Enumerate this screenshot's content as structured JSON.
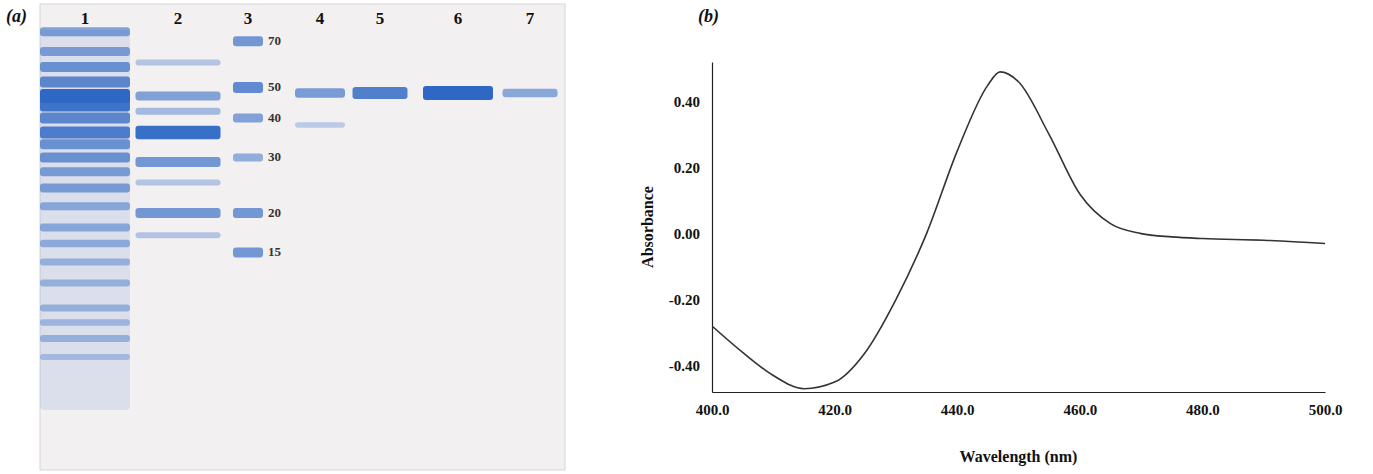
{
  "chart_data": [
    {
      "type": "gel",
      "panel_label": "(a)",
      "log": "y",
      "ylim": [
        76,
        3.3
      ],
      "yticks": [
        70,
        50,
        40,
        30,
        20,
        15
      ],
      "color": "#2f68c4",
      "lanes": [
        {
          "label": "1",
          "kda": [
            75,
            65,
            58,
            52,
            47,
            44,
            40,
            36,
            33,
            30,
            27,
            24,
            21,
            18,
            16,
            14,
            12,
            10,
            9,
            8,
            7
          ],
          "intensity": [
            0.5,
            0.5,
            0.6,
            0.7,
            1.0,
            0.9,
            0.7,
            0.8,
            0.6,
            0.6,
            0.5,
            0.5,
            0.4,
            0.4,
            0.35,
            0.3,
            0.3,
            0.3,
            0.25,
            0.3,
            0.2
          ]
        },
        {
          "label": "2",
          "kda": [
            60,
            47,
            42,
            36,
            29,
            25,
            20,
            17
          ],
          "intensity": [
            0.2,
            0.5,
            0.3,
            0.95,
            0.6,
            0.2,
            0.6,
            0.2
          ]
        },
        {
          "label": "3",
          "kda": [
            70,
            50,
            40,
            30,
            20,
            15
          ],
          "intensity": [
            0.6,
            0.7,
            0.5,
            0.4,
            0.6,
            0.6
          ]
        },
        {
          "label": "4",
          "kda": [
            48,
            38
          ],
          "intensity": [
            0.55,
            0.15
          ]
        },
        {
          "label": "5",
          "kda": [
            48
          ],
          "intensity": [
            0.8
          ]
        },
        {
          "label": "6",
          "kda": [
            48
          ],
          "intensity": [
            1.0
          ]
        },
        {
          "label": "7",
          "kda": [
            48
          ],
          "intensity": [
            0.45
          ]
        }
      ]
    },
    {
      "type": "line",
      "panel_label": "(b)",
      "xlabel": "Wavelength (nm)",
      "ylabel": "Absorbance",
      "color": "#333333",
      "x": [
        400,
        405,
        410,
        415,
        420,
        425,
        430,
        435,
        440,
        445,
        447,
        450,
        455,
        460,
        465,
        470,
        475,
        480,
        490,
        500
      ],
      "values": [
        -0.28,
        -0.36,
        -0.43,
        -0.47,
        -0.45,
        -0.36,
        -0.2,
        0.0,
        0.25,
        0.45,
        0.49,
        0.46,
        0.3,
        0.12,
        0.03,
        0.0,
        -0.01,
        -0.015,
        -0.02,
        -0.03
      ],
      "xlim": [
        400,
        500
      ],
      "ylim": [
        -0.48,
        0.52
      ],
      "xticks": [
        {
          "value": 400,
          "label": "400.0"
        },
        {
          "value": 420,
          "label": "420.0"
        },
        {
          "value": 440,
          "label": "440.0"
        },
        {
          "value": 460,
          "label": "460.0"
        },
        {
          "value": 480,
          "label": "480.0"
        },
        {
          "value": 500,
          "label": "500.0"
        }
      ],
      "yticks": [
        {
          "value": -0.4,
          "label": "-0.40"
        },
        {
          "value": -0.2,
          "label": "-0.20"
        },
        {
          "value": 0,
          "label": "0.00"
        },
        {
          "value": 0.2,
          "label": "0.20"
        },
        {
          "value": 0.4,
          "label": "0.40"
        }
      ]
    }
  ]
}
